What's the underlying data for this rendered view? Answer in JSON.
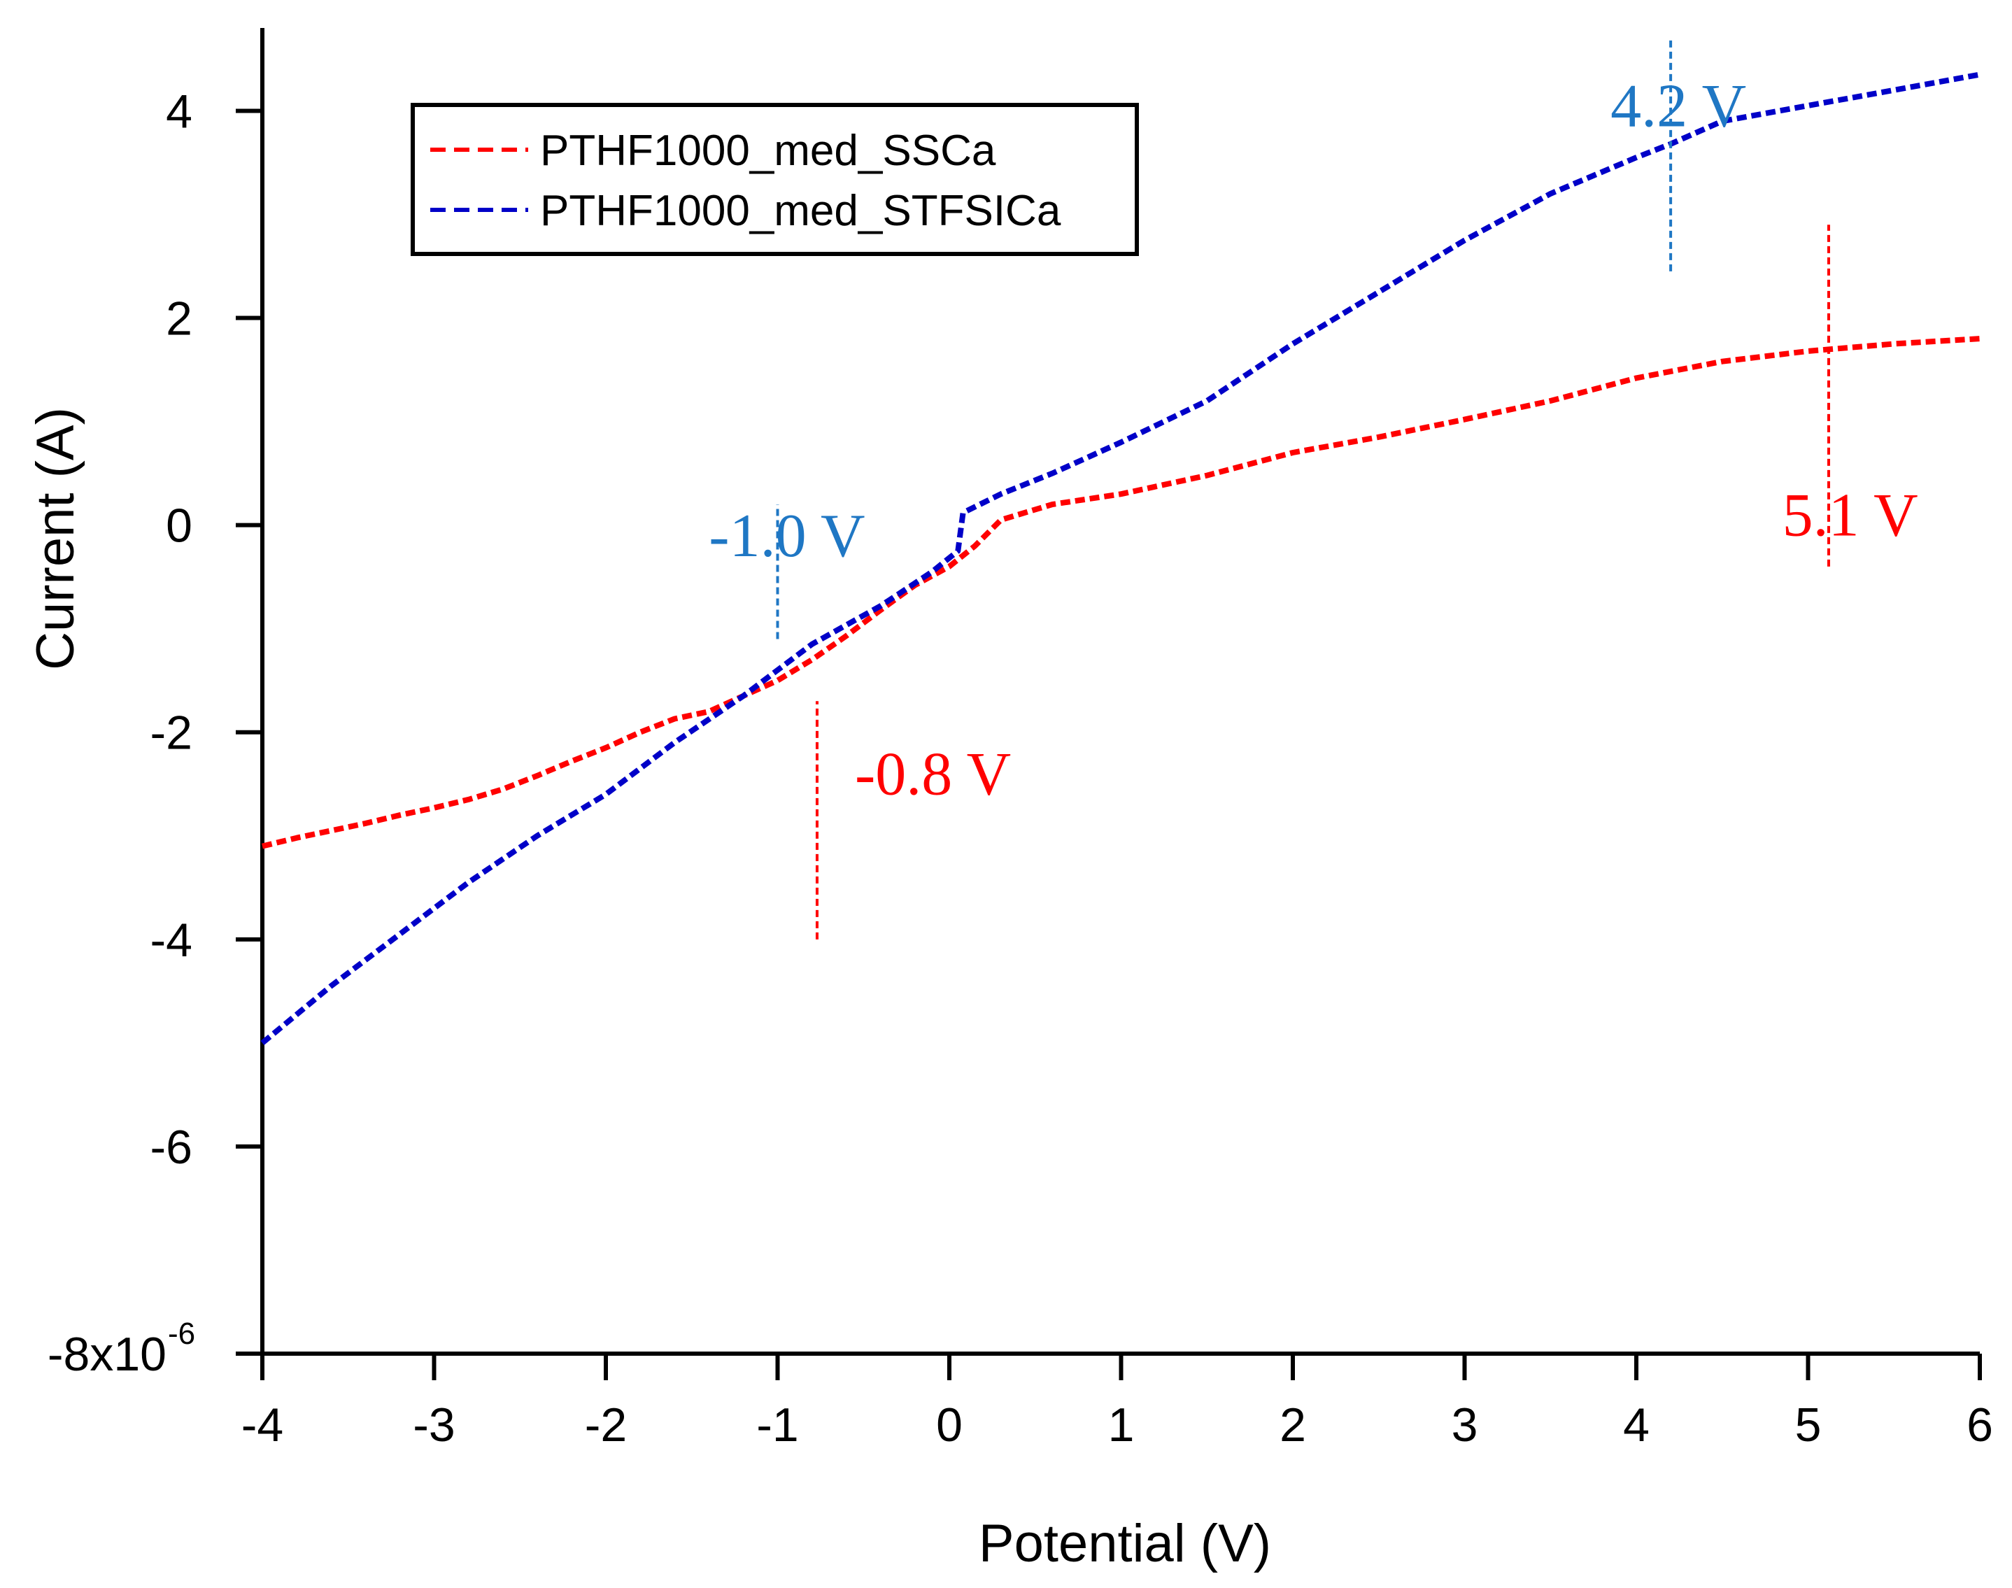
{
  "chart_data": {
    "type": "line",
    "title": "",
    "xlabel": "Potential (V)",
    "ylabel": "Current (A)",
    "xlim": [
      -4,
      6
    ],
    "ylim": [
      -8e-06,
      4.8e-06
    ],
    "x_ticks": [
      -4,
      -3,
      -2,
      -1,
      0,
      1,
      2,
      3,
      4,
      5,
      6
    ],
    "x_tick_labels": [
      "-4",
      "-3",
      "-2",
      "-1",
      "0",
      "1",
      "2",
      "3",
      "4",
      "5",
      "6"
    ],
    "y_ticks": [
      4e-06,
      2e-06,
      0,
      -2e-06,
      -4e-06,
      -6e-06,
      -8e-06
    ],
    "y_tick_labels": [
      "4",
      "2",
      "0",
      "-2",
      "-4",
      "-6",
      "-8x10"
    ],
    "y_exponent_label": "-6",
    "grid": false,
    "legend_position": "top-left",
    "series": [
      {
        "name": "PTHF1000_med_SSCa",
        "color": "#ff0000",
        "x": [
          -4.0,
          -3.8,
          -3.6,
          -3.4,
          -3.2,
          -3.0,
          -2.8,
          -2.6,
          -2.4,
          -2.2,
          -2.0,
          -1.8,
          -1.6,
          -1.4,
          -1.2,
          -1.0,
          -0.8,
          -0.6,
          -0.4,
          -0.2,
          0.0,
          0.15,
          0.3,
          0.6,
          1.0,
          1.5,
          2.0,
          2.5,
          3.0,
          3.5,
          4.0,
          4.5,
          5.0,
          5.5,
          6.0
        ],
        "y": [
          -3.1e-06,
          -3.02e-06,
          -2.95e-06,
          -2.88e-06,
          -2.8e-06,
          -2.73e-06,
          -2.65e-06,
          -2.55e-06,
          -2.42e-06,
          -2.28e-06,
          -2.15e-06,
          -2e-06,
          -1.87e-06,
          -1.8e-06,
          -1.65e-06,
          -1.5e-06,
          -1.3e-06,
          -1.07e-06,
          -8.2e-07,
          -5.8e-07,
          -4e-07,
          -2e-07,
          5e-08,
          2e-07,
          3e-07,
          4.8e-07,
          7e-07,
          8.5e-07,
          1.02e-06,
          1.2e-06,
          1.42e-06,
          1.58e-06,
          1.68e-06,
          1.75e-06,
          1.8e-06
        ]
      },
      {
        "name": "PTHF1000_med_STFSICa",
        "color": "#0000c8",
        "x": [
          -4.0,
          -3.6,
          -3.2,
          -2.8,
          -2.4,
          -2.0,
          -1.6,
          -1.2,
          -0.8,
          -0.4,
          -0.1,
          0.05,
          0.08,
          0.3,
          0.6,
          1.0,
          1.5,
          2.0,
          2.5,
          3.0,
          3.5,
          4.0,
          4.2,
          4.5,
          5.0,
          5.5,
          6.0
        ],
        "y": [
          -5e-06,
          -4.45e-06,
          -3.95e-06,
          -3.45e-06,
          -3e-06,
          -2.6e-06,
          -2.1e-06,
          -1.65e-06,
          -1.15e-06,
          -7.8e-07,
          -4.5e-07,
          -2.5e-07,
          1.2e-07,
          3e-07,
          5e-07,
          8e-07,
          1.2e-06,
          1.75e-06,
          2.25e-06,
          2.75e-06,
          3.2e-06,
          3.55e-06,
          3.68e-06,
          3.9e-06,
          4.05e-06,
          4.2e-06,
          4.35e-06
        ]
      }
    ],
    "annotations": [
      {
        "text": "-1.0 V",
        "color": "#1f77c4",
        "x": -1.0,
        "y_from": -1.1e-06,
        "y_to": 2e-07,
        "label_x": -1.4,
        "label_y": -3e-07
      },
      {
        "text": "-0.8 V",
        "color": "#ff0000",
        "x": -0.77,
        "y_from": -4e-06,
        "y_to": -1.7e-06,
        "label_x": -0.55,
        "label_y": -2.6e-06
      },
      {
        "text": "4.2 V",
        "color": "#1f77c4",
        "x": 4.2,
        "y_from": 2.45e-06,
        "y_to": 4.7e-06,
        "label_x": 3.85,
        "label_y": 3.85e-06
      },
      {
        "text": "5.1 V",
        "color": "#ff0000",
        "x": 5.12,
        "y_from": -4e-07,
        "y_to": 2.9e-06,
        "label_x": 4.85,
        "label_y": -1e-07
      }
    ]
  }
}
